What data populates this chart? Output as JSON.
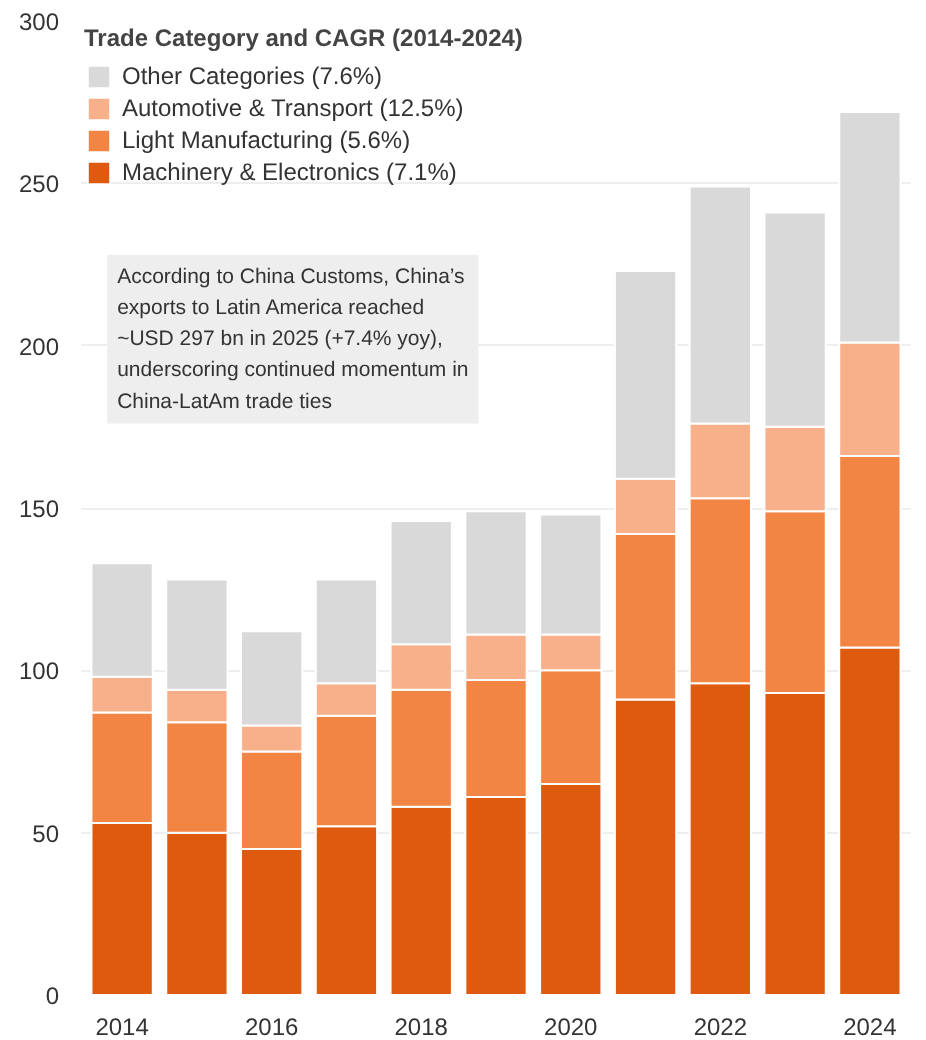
{
  "chart_data": {
    "type": "bar",
    "stacked": true,
    "legend_title": "Trade Category and CAGR (2014-2024)",
    "legend": "top left",
    "x": [
      2014,
      2015,
      2016,
      2017,
      2018,
      2019,
      2020,
      2021,
      2022,
      2023,
      2024
    ],
    "series": [
      {
        "name": "Machinery & Electronics (7.1%)",
        "color": "#dd5a0f",
        "values": [
          53,
          50,
          45,
          52,
          58,
          61,
          65,
          91,
          96,
          93,
          107
        ]
      },
      {
        "name": "Light Manufacturing (5.6%)",
        "color": "#f28444",
        "values": [
          34,
          34,
          30,
          34,
          36,
          36,
          35,
          51,
          57,
          56,
          59
        ]
      },
      {
        "name": "Automotive & Transport (12.5%)",
        "color": "#f7b08a",
        "values": [
          11,
          10,
          8,
          10,
          14,
          14,
          11,
          17,
          23,
          26,
          35
        ]
      },
      {
        "name": "Other Categories (7.6%)",
        "color": "#d9d9d9",
        "values": [
          35,
          34,
          29,
          32,
          38,
          38,
          37,
          64,
          73,
          66,
          71
        ]
      }
    ],
    "xlim": [
      2013.45,
      2024.55
    ],
    "xticks": [
      2014,
      2016,
      2018,
      2020,
      2022,
      2024
    ],
    "ylim": [
      0,
      300
    ],
    "yticks": [
      0,
      50,
      100,
      150,
      200,
      250,
      300
    ],
    "grid": "y",
    "annotations": [
      "According to China Customs, China’s\nexports to Latin America reached\n~USD 297 bn in 2025 (+7.4% yoy),\nunderscoring continued momentum in\nChina-LatAm trade ties"
    ]
  }
}
